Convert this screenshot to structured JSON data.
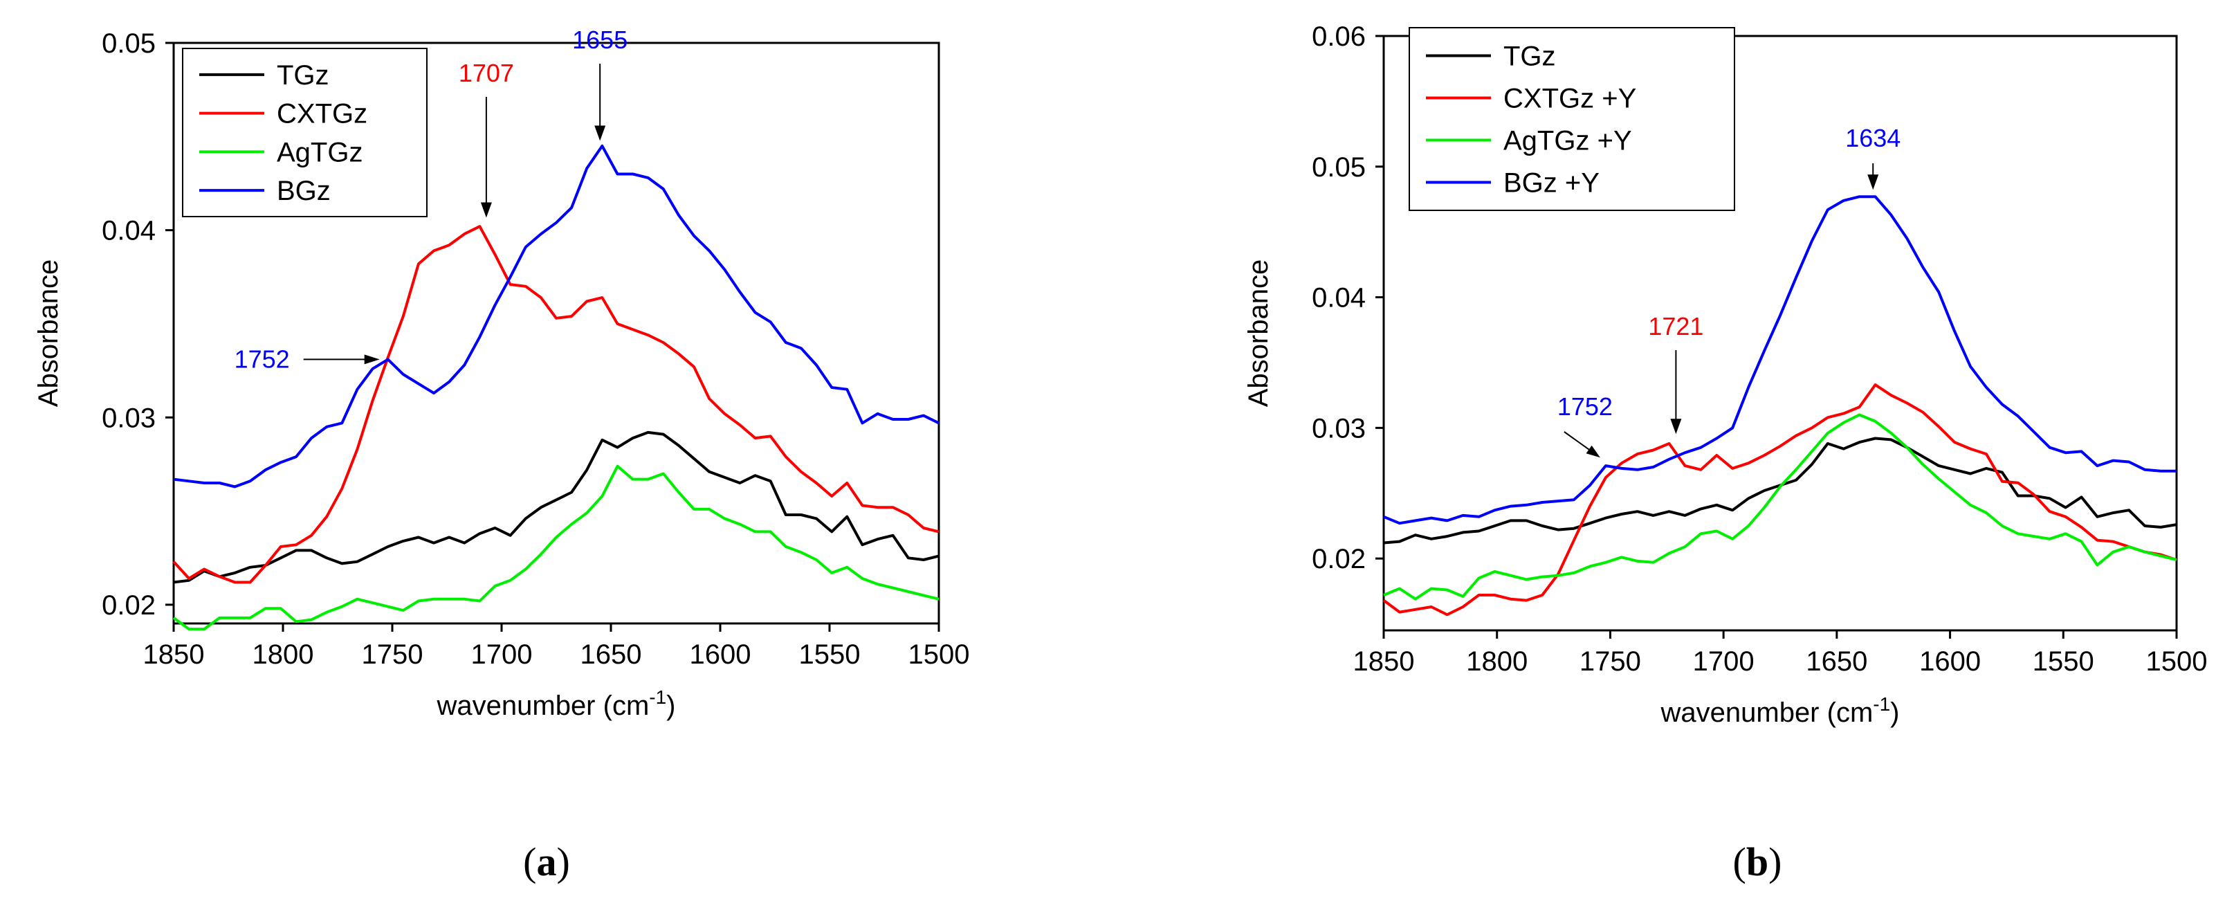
{
  "chart_data": [
    {
      "type": "line",
      "panel_label": "(a)",
      "panel_letter": "a",
      "xlabel": "wavenumber (cm",
      "xlabel_sup": "-1",
      "xlabel_close": ")",
      "ylabel": "Absorbance",
      "xlim": [
        1850,
        1500
      ],
      "ylim": [
        0.019,
        0.05
      ],
      "grid": false,
      "legend_position": "top-left",
      "x_ticks": [
        1850,
        1800,
        1750,
        1700,
        1650,
        1600,
        1550,
        1500
      ],
      "x_tick_labels": [
        "1850",
        "1800",
        "1750",
        "1700",
        "1650",
        "1600",
        "1550",
        "1500"
      ],
      "y_ticks": [
        0.02,
        0.03,
        0.04,
        0.05
      ],
      "y_tick_labels": [
        "0.02",
        "0.03",
        "0.04",
        "0.05"
      ],
      "x": [
        1850,
        1843,
        1836,
        1829,
        1822,
        1815,
        1808,
        1801,
        1794,
        1787,
        1780,
        1773,
        1766,
        1759,
        1752,
        1745,
        1738,
        1731,
        1724,
        1717,
        1710,
        1703,
        1696,
        1689,
        1682,
        1675,
        1668,
        1661,
        1654,
        1647,
        1640,
        1633,
        1626,
        1619,
        1612,
        1605,
        1598,
        1591,
        1584,
        1577,
        1570,
        1563,
        1556,
        1549,
        1542,
        1535,
        1528,
        1521,
        1514,
        1507,
        1500
      ],
      "series": [
        {
          "name": "TGz",
          "color": "#000000",
          "values": [
            0.0212,
            0.0213,
            0.0218,
            0.0215,
            0.0217,
            0.022,
            0.0221,
            0.0225,
            0.0229,
            0.0229,
            0.0225,
            0.0222,
            0.0223,
            0.0227,
            0.0231,
            0.0234,
            0.0236,
            0.0233,
            0.0236,
            0.0233,
            0.0238,
            0.0241,
            0.0237,
            0.0246,
            0.0252,
            0.0256,
            0.026,
            0.0272,
            0.0288,
            0.0284,
            0.0289,
            0.0292,
            0.0291,
            0.0285,
            0.0278,
            0.0271,
            0.0268,
            0.0265,
            0.0269,
            0.0266,
            0.0248,
            0.0248,
            0.0246,
            0.0239,
            0.0247,
            0.0232,
            0.0235,
            0.0237,
            0.0225,
            0.0224,
            0.0226
          ]
        },
        {
          "name": "CXTGz",
          "color": "#ff0000",
          "values": [
            0.0223,
            0.0214,
            0.0219,
            0.0215,
            0.0212,
            0.0212,
            0.0221,
            0.0231,
            0.0232,
            0.0237,
            0.0247,
            0.0262,
            0.0283,
            0.0309,
            0.0332,
            0.0354,
            0.0382,
            0.0389,
            0.0392,
            0.0398,
            0.0402,
            0.0387,
            0.0371,
            0.037,
            0.0364,
            0.0353,
            0.0354,
            0.0362,
            0.0364,
            0.035,
            0.0347,
            0.0344,
            0.034,
            0.0334,
            0.0327,
            0.031,
            0.0302,
            0.0296,
            0.0289,
            0.029,
            0.0279,
            0.0271,
            0.0265,
            0.0258,
            0.0265,
            0.0253,
            0.0252,
            0.0252,
            0.0248,
            0.0241,
            0.0239
          ]
        },
        {
          "name": "AgTGz",
          "color": "#00ee00",
          "values": [
            0.0193,
            0.0187,
            0.0187,
            0.0193,
            0.0193,
            0.0193,
            0.0198,
            0.0198,
            0.0191,
            0.0192,
            0.0196,
            0.0199,
            0.0203,
            0.0201,
            0.0199,
            0.0197,
            0.0202,
            0.0203,
            0.0203,
            0.0203,
            0.0202,
            0.021,
            0.0213,
            0.0219,
            0.0227,
            0.0236,
            0.0243,
            0.0249,
            0.0258,
            0.0274,
            0.0267,
            0.0267,
            0.027,
            0.026,
            0.0251,
            0.0251,
            0.0246,
            0.0243,
            0.0239,
            0.0239,
            0.0231,
            0.0228,
            0.0224,
            0.0217,
            0.022,
            0.0214,
            0.0211,
            0.0209,
            0.0207,
            0.0205,
            0.0203
          ]
        },
        {
          "name": "BGz",
          "color": "#0000ff",
          "values": [
            0.0267,
            0.0266,
            0.0265,
            0.0265,
            0.0263,
            0.0266,
            0.0272,
            0.0276,
            0.0279,
            0.0289,
            0.0295,
            0.0297,
            0.0315,
            0.0326,
            0.0331,
            0.0323,
            0.0318,
            0.0313,
            0.0319,
            0.0328,
            0.0343,
            0.036,
            0.0375,
            0.0391,
            0.0398,
            0.0404,
            0.0412,
            0.0433,
            0.0445,
            0.043,
            0.043,
            0.0428,
            0.0422,
            0.0408,
            0.0397,
            0.0389,
            0.0379,
            0.0367,
            0.0356,
            0.0351,
            0.034,
            0.0337,
            0.0328,
            0.0316,
            0.0315,
            0.0297,
            0.0302,
            0.0299,
            0.0299,
            0.0301,
            0.0297
          ]
        }
      ],
      "annotations": [
        {
          "text": "1707",
          "color": "#ff0000",
          "x": 1707,
          "y": 0.0403
        },
        {
          "text": "1655",
          "color": "#0000ff",
          "x": 1655,
          "y": 0.0444
        },
        {
          "text": "1752",
          "color": "#0000ff",
          "x": 1752,
          "y": 0.0331
        }
      ]
    },
    {
      "type": "line",
      "panel_label": "(b)",
      "panel_letter": "b",
      "xlabel": "wavenumber (cm",
      "xlabel_sup": "-1",
      "xlabel_close": ")",
      "ylabel": "Absorbance",
      "xlim": [
        1850,
        1500
      ],
      "ylim": [
        0.0145,
        0.06
      ],
      "grid": false,
      "legend_position": "top-left",
      "x_ticks": [
        1850,
        1800,
        1750,
        1700,
        1650,
        1600,
        1550,
        1500
      ],
      "x_tick_labels": [
        "1850",
        "1800",
        "1750",
        "1700",
        "1650",
        "1600",
        "1550",
        "1500"
      ],
      "y_ticks": [
        0.02,
        0.03,
        0.04,
        0.05,
        0.06
      ],
      "y_tick_labels": [
        "0.02",
        "0.03",
        "0.04",
        "0.05",
        "0.06"
      ],
      "x": [
        1850,
        1843,
        1836,
        1829,
        1822,
        1815,
        1808,
        1801,
        1794,
        1787,
        1780,
        1773,
        1766,
        1759,
        1752,
        1745,
        1738,
        1731,
        1724,
        1717,
        1710,
        1703,
        1696,
        1689,
        1682,
        1675,
        1668,
        1661,
        1654,
        1647,
        1640,
        1633,
        1626,
        1619,
        1612,
        1605,
        1598,
        1591,
        1584,
        1577,
        1570,
        1563,
        1556,
        1549,
        1542,
        1535,
        1528,
        1521,
        1514,
        1507,
        1500
      ],
      "series": [
        {
          "name": "TGz",
          "color": "#000000",
          "values": [
            0.0212,
            0.0213,
            0.0218,
            0.0215,
            0.0217,
            0.022,
            0.0221,
            0.0225,
            0.0229,
            0.0229,
            0.0225,
            0.0222,
            0.0223,
            0.0227,
            0.0231,
            0.0234,
            0.0236,
            0.0233,
            0.0236,
            0.0233,
            0.0238,
            0.0241,
            0.0237,
            0.0246,
            0.0252,
            0.0256,
            0.026,
            0.0272,
            0.0288,
            0.0284,
            0.0289,
            0.0292,
            0.0291,
            0.0285,
            0.0278,
            0.0271,
            0.0268,
            0.0265,
            0.0269,
            0.0266,
            0.0248,
            0.0248,
            0.0246,
            0.0239,
            0.0247,
            0.0232,
            0.0235,
            0.0237,
            0.0225,
            0.0224,
            0.0226
          ]
        },
        {
          "name": "CXTGz +Y",
          "color": "#ff0000",
          "values": [
            0.0168,
            0.0159,
            0.0161,
            0.0163,
            0.0157,
            0.0163,
            0.0172,
            0.0172,
            0.0169,
            0.0168,
            0.0172,
            0.0188,
            0.0214,
            0.024,
            0.0262,
            0.0273,
            0.028,
            0.0283,
            0.0288,
            0.0271,
            0.0268,
            0.0279,
            0.0269,
            0.0273,
            0.0279,
            0.0286,
            0.0294,
            0.03,
            0.0308,
            0.0311,
            0.0316,
            0.0333,
            0.0325,
            0.0319,
            0.0312,
            0.0301,
            0.0289,
            0.0284,
            0.028,
            0.0259,
            0.0258,
            0.0249,
            0.0236,
            0.0232,
            0.0224,
            0.0214,
            0.0213,
            0.0209,
            0.0205,
            0.0203,
            0.0199
          ]
        },
        {
          "name": "AgTGz +Y",
          "color": "#00ee00",
          "values": [
            0.0172,
            0.0177,
            0.0169,
            0.0177,
            0.0176,
            0.0171,
            0.0185,
            0.019,
            0.0187,
            0.0184,
            0.0186,
            0.0187,
            0.0189,
            0.0194,
            0.0197,
            0.0201,
            0.0198,
            0.0197,
            0.0204,
            0.0209,
            0.0219,
            0.0221,
            0.0215,
            0.0225,
            0.0239,
            0.0255,
            0.0268,
            0.0282,
            0.0296,
            0.0304,
            0.031,
            0.0305,
            0.0296,
            0.0285,
            0.0272,
            0.0261,
            0.0251,
            0.0241,
            0.0235,
            0.0225,
            0.0219,
            0.0217,
            0.0215,
            0.0219,
            0.0213,
            0.0195,
            0.0205,
            0.0209,
            0.0205,
            0.0202,
            0.0199
          ]
        },
        {
          "name": "BGz +Y",
          "color": "#0000ff",
          "values": [
            0.0232,
            0.0227,
            0.0229,
            0.0231,
            0.0229,
            0.0233,
            0.0232,
            0.0237,
            0.024,
            0.0241,
            0.0243,
            0.0244,
            0.0245,
            0.0256,
            0.0271,
            0.0269,
            0.0268,
            0.027,
            0.0276,
            0.0281,
            0.0285,
            0.0292,
            0.03,
            0.0331,
            0.0359,
            0.0386,
            0.0415,
            0.0443,
            0.0467,
            0.0474,
            0.0477,
            0.0477,
            0.0463,
            0.0445,
            0.0423,
            0.0404,
            0.0374,
            0.0347,
            0.0331,
            0.0318,
            0.0309,
            0.0297,
            0.0285,
            0.0281,
            0.0282,
            0.0271,
            0.0275,
            0.0274,
            0.0268,
            0.0267,
            0.0267
          ]
        }
      ],
      "annotations": [
        {
          "text": "1634",
          "color": "#0000ff",
          "x": 1634,
          "y": 0.0477
        },
        {
          "text": "1721",
          "color": "#ff0000",
          "x": 1721,
          "y": 0.029
        },
        {
          "text": "1752",
          "color": "#0000ff",
          "x": 1752,
          "y": 0.0272
        }
      ]
    }
  ]
}
